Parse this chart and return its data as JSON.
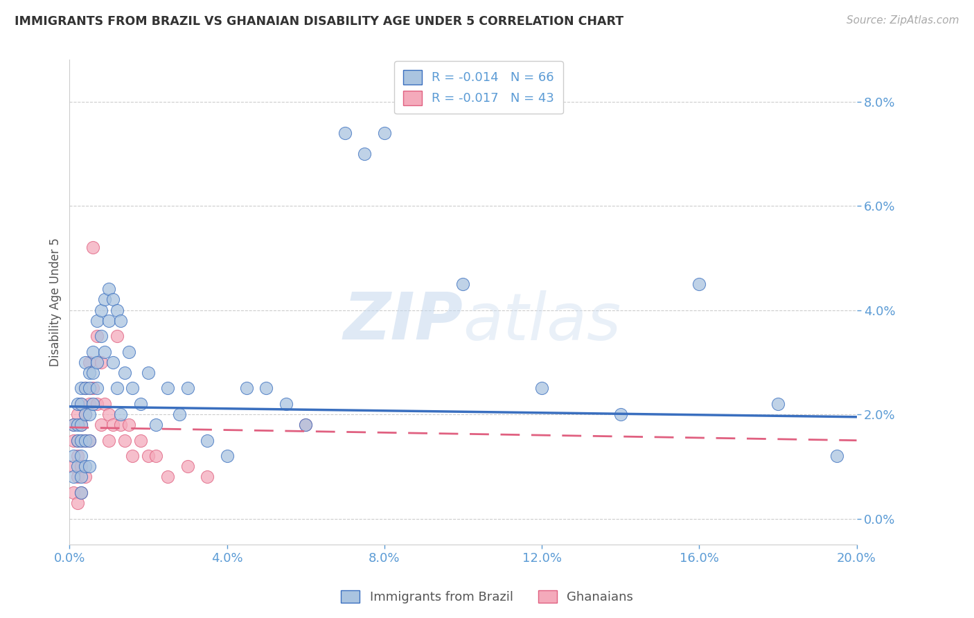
{
  "title": "IMMIGRANTS FROM BRAZIL VS GHANAIAN DISABILITY AGE UNDER 5 CORRELATION CHART",
  "source": "Source: ZipAtlas.com",
  "ylabel": "Disability Age Under 5",
  "legend_brazil": "Immigrants from Brazil",
  "legend_ghana": "Ghanaians",
  "r_brazil": "-0.014",
  "n_brazil": "66",
  "r_ghana": "-0.017",
  "n_ghana": "43",
  "xlim": [
    0.0,
    0.2
  ],
  "ylim": [
    -0.005,
    0.088
  ],
  "yticks": [
    0.0,
    0.02,
    0.04,
    0.06,
    0.08
  ],
  "xticks": [
    0.0,
    0.04,
    0.08,
    0.12,
    0.16,
    0.2
  ],
  "color_brazil": "#aac4e0",
  "color_ghana": "#f4aabb",
  "line_color_brazil": "#3a6fbf",
  "line_color_ghana": "#e06080",
  "brazil_trend_x": [
    0.0,
    0.2
  ],
  "brazil_trend_y": [
    0.0215,
    0.0195
  ],
  "ghana_trend_x": [
    0.0,
    0.2
  ],
  "ghana_trend_y": [
    0.0175,
    0.015
  ],
  "brazil_x": [
    0.001,
    0.001,
    0.001,
    0.002,
    0.002,
    0.002,
    0.002,
    0.003,
    0.003,
    0.003,
    0.003,
    0.003,
    0.003,
    0.003,
    0.004,
    0.004,
    0.004,
    0.004,
    0.004,
    0.005,
    0.005,
    0.005,
    0.005,
    0.005,
    0.006,
    0.006,
    0.006,
    0.007,
    0.007,
    0.007,
    0.008,
    0.008,
    0.009,
    0.009,
    0.01,
    0.01,
    0.011,
    0.011,
    0.012,
    0.012,
    0.013,
    0.013,
    0.014,
    0.015,
    0.016,
    0.018,
    0.02,
    0.022,
    0.025,
    0.028,
    0.03,
    0.035,
    0.04,
    0.045,
    0.05,
    0.055,
    0.06,
    0.07,
    0.075,
    0.08,
    0.1,
    0.12,
    0.14,
    0.16,
    0.18,
    0.195
  ],
  "brazil_y": [
    0.018,
    0.012,
    0.008,
    0.022,
    0.018,
    0.015,
    0.01,
    0.025,
    0.022,
    0.018,
    0.015,
    0.012,
    0.008,
    0.005,
    0.03,
    0.025,
    0.02,
    0.015,
    0.01,
    0.028,
    0.025,
    0.02,
    0.015,
    0.01,
    0.032,
    0.028,
    0.022,
    0.038,
    0.03,
    0.025,
    0.04,
    0.035,
    0.042,
    0.032,
    0.044,
    0.038,
    0.042,
    0.03,
    0.04,
    0.025,
    0.038,
    0.02,
    0.028,
    0.032,
    0.025,
    0.022,
    0.028,
    0.018,
    0.025,
    0.02,
    0.025,
    0.015,
    0.012,
    0.025,
    0.025,
    0.022,
    0.018,
    0.074,
    0.07,
    0.074,
    0.045,
    0.025,
    0.02,
    0.045,
    0.022,
    0.012
  ],
  "ghana_x": [
    0.001,
    0.001,
    0.001,
    0.001,
    0.002,
    0.002,
    0.002,
    0.002,
    0.002,
    0.003,
    0.003,
    0.003,
    0.003,
    0.003,
    0.004,
    0.004,
    0.004,
    0.004,
    0.005,
    0.005,
    0.005,
    0.006,
    0.006,
    0.007,
    0.007,
    0.008,
    0.008,
    0.009,
    0.01,
    0.01,
    0.011,
    0.012,
    0.013,
    0.014,
    0.015,
    0.016,
    0.018,
    0.02,
    0.022,
    0.025,
    0.03,
    0.035,
    0.06
  ],
  "ghana_y": [
    0.018,
    0.015,
    0.01,
    0.005,
    0.02,
    0.015,
    0.012,
    0.008,
    0.003,
    0.022,
    0.018,
    0.015,
    0.01,
    0.005,
    0.025,
    0.02,
    0.015,
    0.008,
    0.03,
    0.022,
    0.015,
    0.052,
    0.025,
    0.035,
    0.022,
    0.03,
    0.018,
    0.022,
    0.02,
    0.015,
    0.018,
    0.035,
    0.018,
    0.015,
    0.018,
    0.012,
    0.015,
    0.012,
    0.012,
    0.008,
    0.01,
    0.008,
    0.018
  ],
  "watermark_zip": "ZIP",
  "watermark_atlas": "atlas",
  "background_color": "#ffffff",
  "grid_color": "#cccccc",
  "title_color": "#333333",
  "tick_color": "#5b9bd5"
}
